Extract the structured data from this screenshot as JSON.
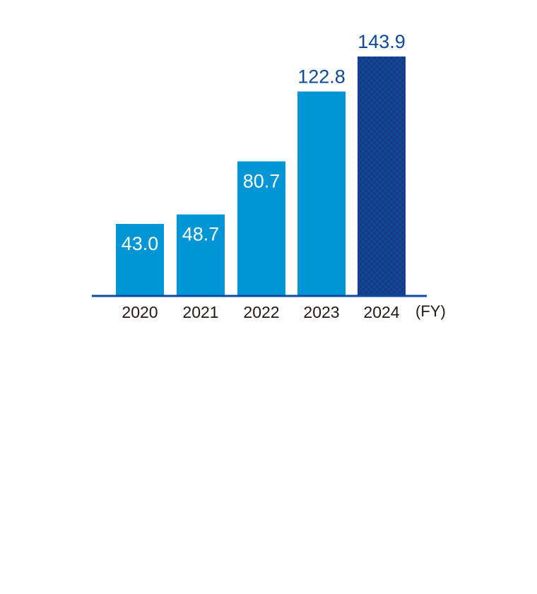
{
  "chart_data": {
    "type": "bar",
    "categories": [
      "2020",
      "2021",
      "2022",
      "2023",
      "2024"
    ],
    "values": [
      43.0,
      48.7,
      80.7,
      122.8,
      143.9
    ],
    "value_labels": [
      "43.0",
      "48.7",
      "80.7",
      "122.8",
      "143.9"
    ],
    "x_unit": "(FY)",
    "title": "",
    "xlabel": "",
    "ylabel": "",
    "ylim": [
      0,
      143.9
    ],
    "grid": false,
    "highlighted_category": "2024",
    "colors": {
      "bar": "#0096d6",
      "highlight_a": "#0b4aa2",
      "highlight_b": "#1f3877",
      "label_outside": "#0d4aa0",
      "label_inside": "#ffffff",
      "axis": "#0d4aa0",
      "tick_text": "#231815"
    }
  }
}
